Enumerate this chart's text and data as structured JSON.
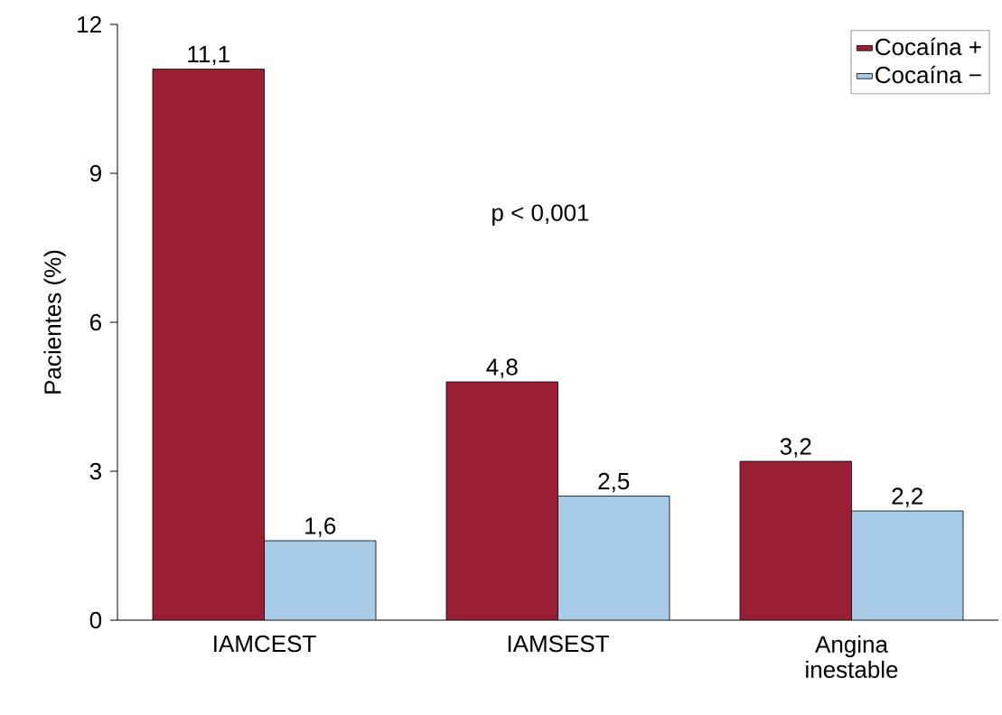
{
  "chart_data": {
    "type": "bar",
    "ylabel": "Pacientes (%)",
    "categories": [
      "IAMCEST",
      "IAMSEST",
      "Angina inestable"
    ],
    "series": [
      {
        "name": "Cocaína +",
        "color": "#9b1f32",
        "values": [
          11.1,
          4.8,
          3.2
        ],
        "value_labels": [
          "11,1",
          "4,8",
          "3,2"
        ]
      },
      {
        "name": "Cocaína −",
        "color": "#a8cbe8",
        "values": [
          1.6,
          2.5,
          2.2
        ],
        "value_labels": [
          "1,6",
          "2,5",
          "2,2"
        ]
      }
    ],
    "ylim": [
      0,
      12
    ],
    "yticks": [
      0,
      3,
      6,
      9,
      12
    ],
    "legend": "top right",
    "grid": false,
    "annotations": [
      "p < 0,001"
    ]
  }
}
